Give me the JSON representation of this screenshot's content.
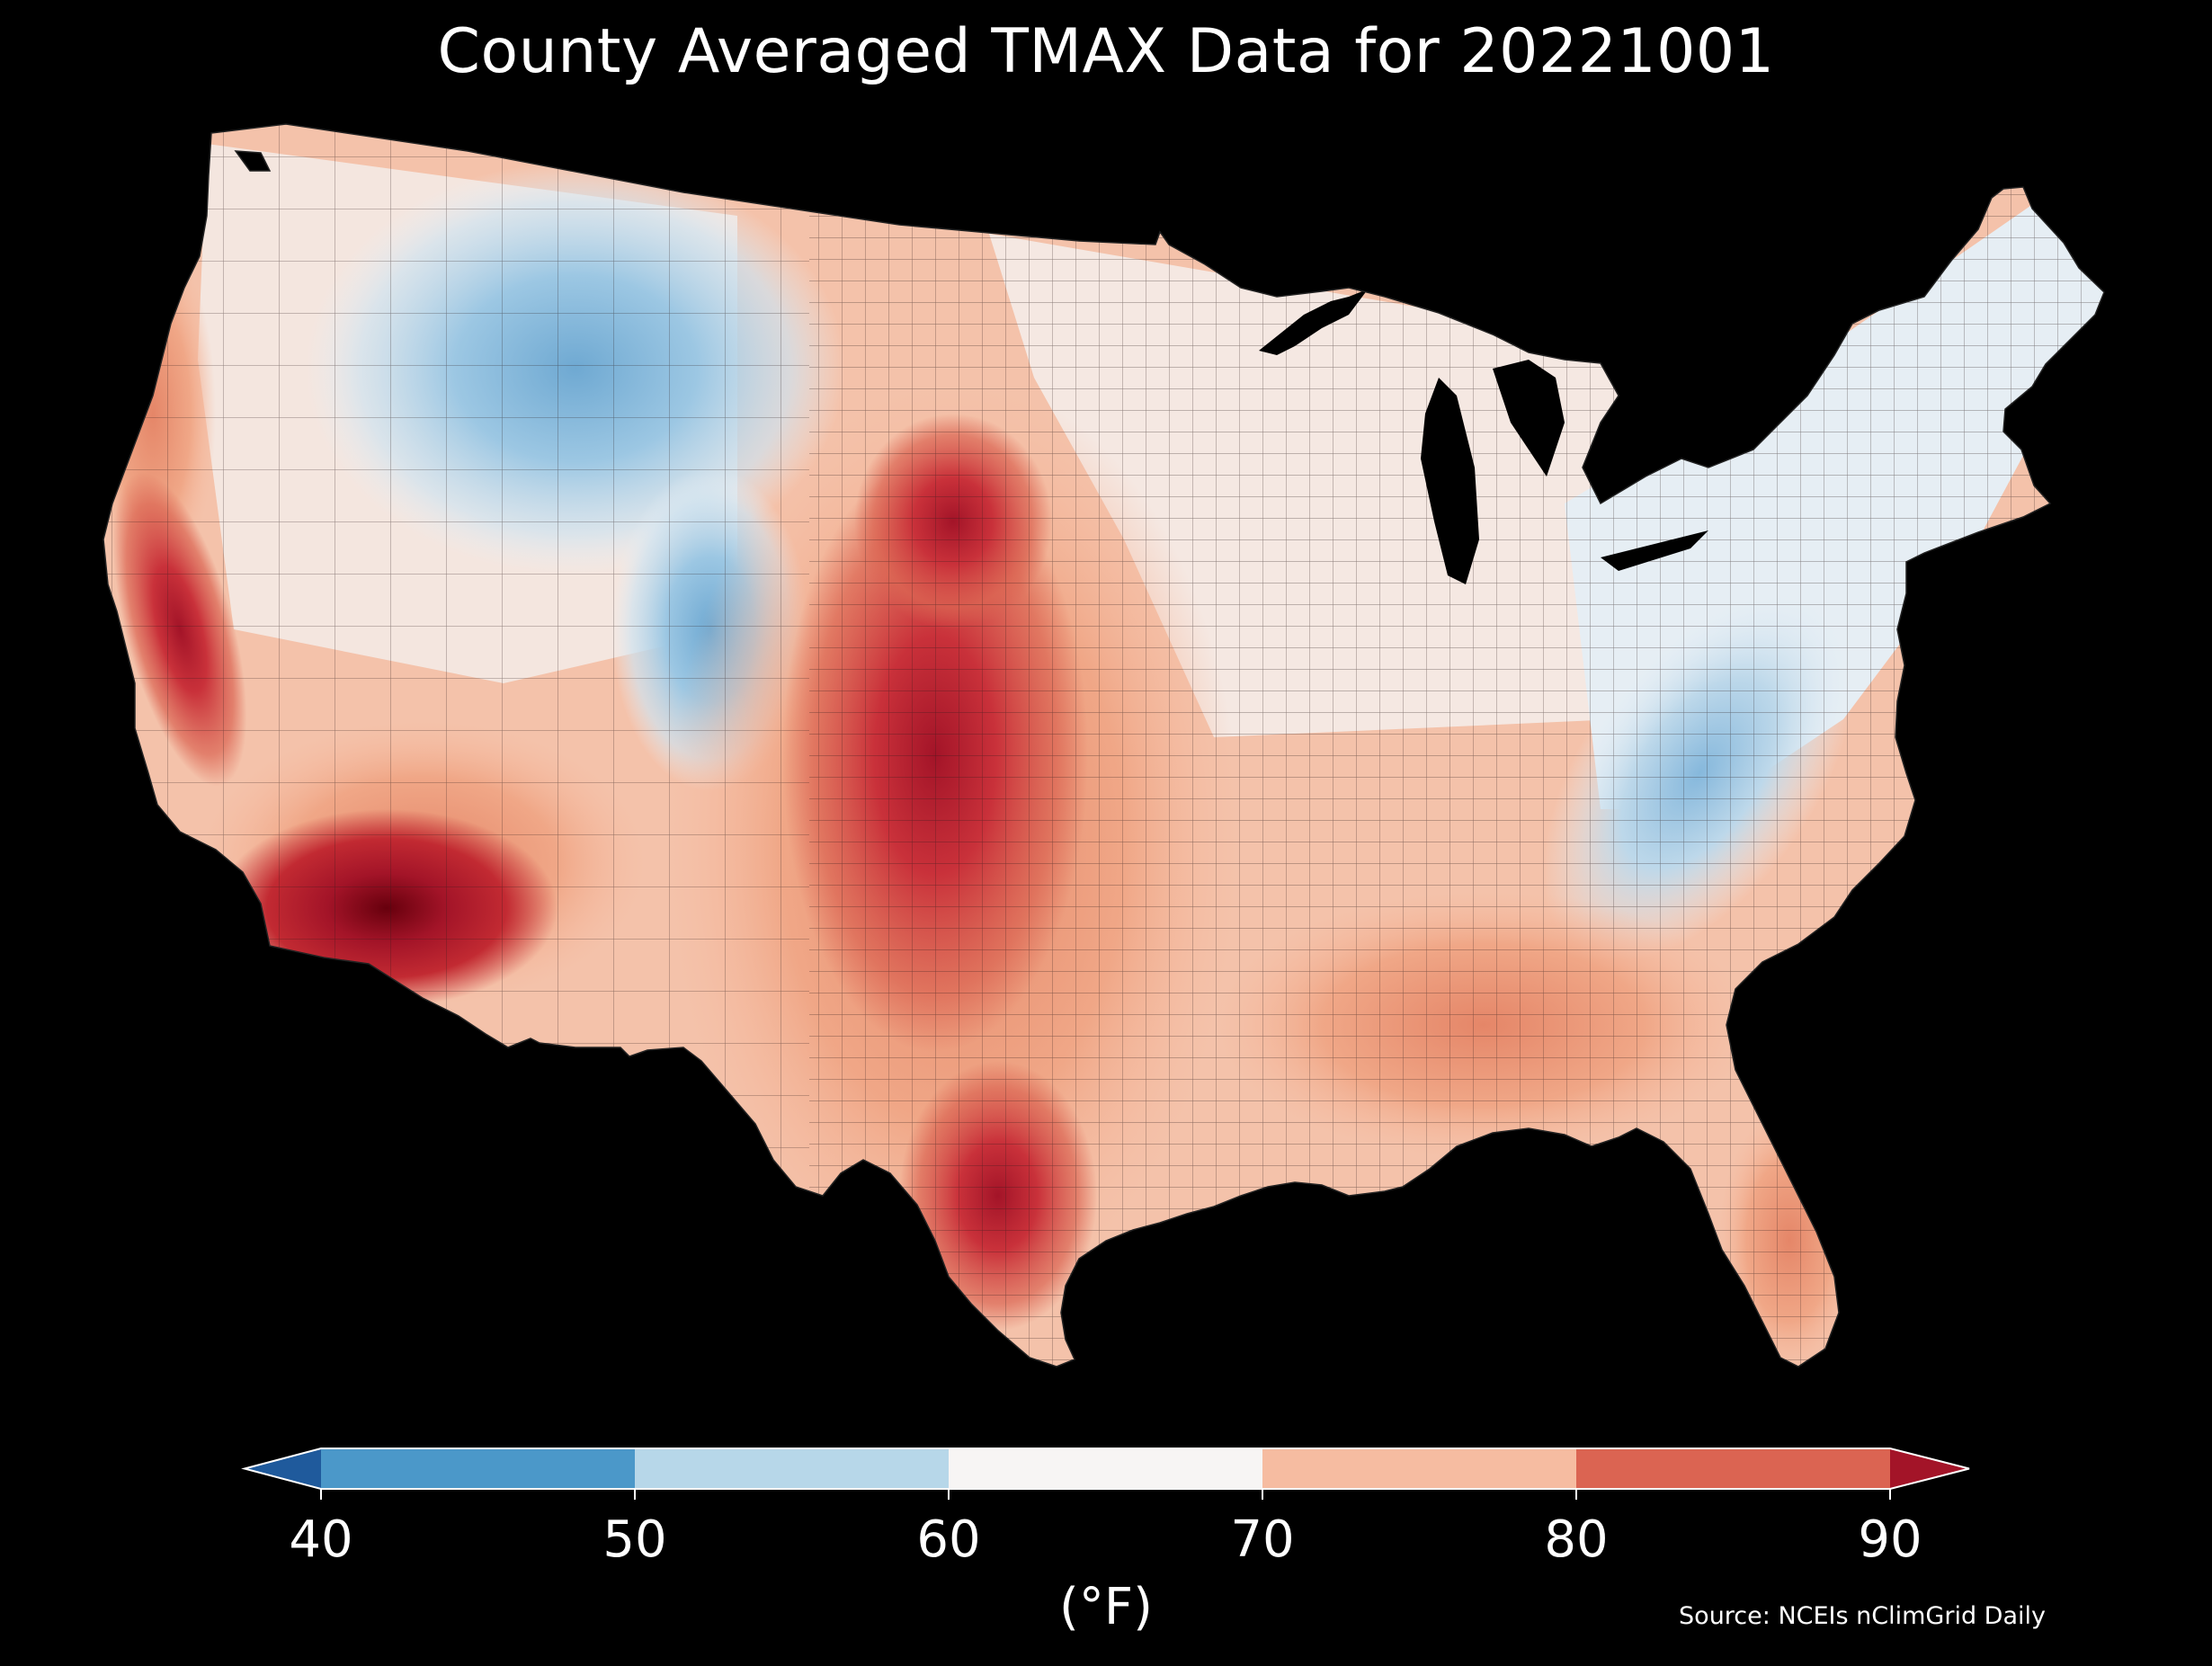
{
  "title": "County Averaged TMAX Data for 20221001",
  "colorbar": {
    "units": "(°F)",
    "ticks": [
      "40",
      "50",
      "60",
      "70",
      "80",
      "90"
    ],
    "bins": [
      {
        "range": "<40",
        "color": "#1f5a9c"
      },
      {
        "range": "40-50",
        "color": "#4b98c9"
      },
      {
        "range": "50-60",
        "color": "#b7d7e9"
      },
      {
        "range": "60-70",
        "color": "#f7f5f4"
      },
      {
        "range": "70-80",
        "color": "#f6bca1"
      },
      {
        "range": "80-90",
        "color": "#db6452"
      },
      {
        "range": ">90",
        "color": "#a31428"
      }
    ],
    "extend": "both"
  },
  "source": "Source: NCEIs nClimGrid Daily",
  "map": {
    "region": "Contiguous United States",
    "background": "#000000",
    "lakes_color": "#000000",
    "border_color": "#1a1a1a"
  }
}
